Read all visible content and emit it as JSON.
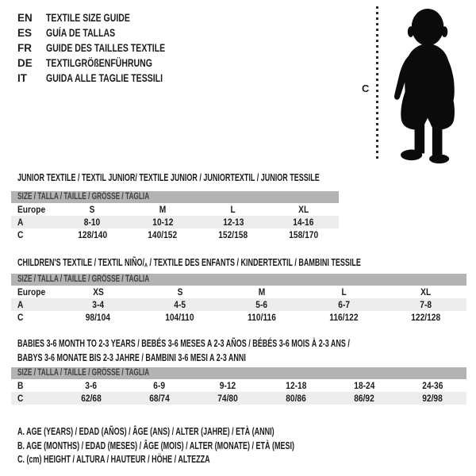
{
  "colors": {
    "header_bar": "#b3b3b3",
    "row_shade": "#ededed",
    "text": "#1c1c1c",
    "silhouette": "#0b0b0b"
  },
  "language_guide": {
    "items": [
      {
        "code": "EN",
        "title": "TEXTILE SIZE GUIDE"
      },
      {
        "code": "ES",
        "title": "GUÍA DE TALLAS"
      },
      {
        "code": "FR",
        "title": "GUIDE DES TAILLES TEXTILE"
      },
      {
        "code": "DE",
        "title": "TEXTILGRÖßENFÜHRUNG"
      },
      {
        "code": "IT",
        "title": "GUIDA ALLE TAGLIE TESSILI"
      }
    ]
  },
  "figure": {
    "label": "C",
    "depicts": "toddler-silhouette-with-height-line"
  },
  "tables": [
    {
      "title": "JUNIOR TEXTILE / TEXTIL JUNIOR/ TEXTILE JUNIOR / JUNIORTEXTIL / JUNIOR TESSILE",
      "size_header": "SIZE / TALLA / TAILLE / GRÖSSE / TAGLIA",
      "rows": [
        {
          "label": "Europe",
          "values": [
            "S",
            "M",
            "L",
            "XL"
          ]
        },
        {
          "label": "A",
          "values": [
            "8-10",
            "10-12",
            "12-13",
            "14-16"
          ]
        },
        {
          "label": "C",
          "values": [
            "128/140",
            "140/152",
            "152/158",
            "158/170"
          ]
        }
      ]
    },
    {
      "title_prefix": "CHILDREN'S TEXTILE / TEXTIL NIÑO/",
      "title_sub": "A",
      "title_suffix": " / TEXTILE DES ENFANTS / KINDERTEXTIL / BAMBINI TESSILE",
      "size_header": "SIZE / TALLA / TAILLE / GRÖSSE / TAGLIA",
      "rows": [
        {
          "label": "Europe",
          "values": [
            "XS",
            "S",
            "M",
            "L",
            "XL"
          ]
        },
        {
          "label": "A",
          "values": [
            "3-4",
            "4-5",
            "5-6",
            "6-7",
            "7-8"
          ]
        },
        {
          "label": "C",
          "values": [
            "98/104",
            "104/110",
            "110/116",
            "116/122",
            "122/128"
          ]
        }
      ]
    },
    {
      "title_line1": "BABIES 3-6 MONTH TO 2-3 YEARS / BEBÉS 3-6 MESES A 2-3 AÑOS / BÉBÉS 3-6 MOIS À 2-3 ANS /",
      "title_line2": "BABYS 3-6 MONATE BIS 2-3 JAHRE / BAMBINI 3-6 MESI A 2-3 ANNI",
      "size_header": "SIZE / TALLA / TAILLE / GRÖSSE / TAGLIA",
      "rows": [
        {
          "label": "B",
          "values": [
            "3-6",
            "6-9",
            "9-12",
            "12-18",
            "18-24",
            "24-36"
          ]
        },
        {
          "label": "C",
          "values": [
            "62/68",
            "68/74",
            "74/80",
            "80/86",
            "86/92",
            "92/98"
          ]
        }
      ]
    }
  ],
  "notes": [
    "A. AGE (YEARS) / EDAD (AÑOS) / ÂGE (ANS) / ALTER (JAHRE) / ETÀ (ANNI)",
    "B. AGE (MONTHS) / EDAD (MESES) / ÂGE (MOIS) / ALTER (MONATE) / ETÀ (MESI)",
    "C. (cm) HEIGHT / ALTURA / HAUTEUR / HÖHE / ALTEZZA"
  ]
}
